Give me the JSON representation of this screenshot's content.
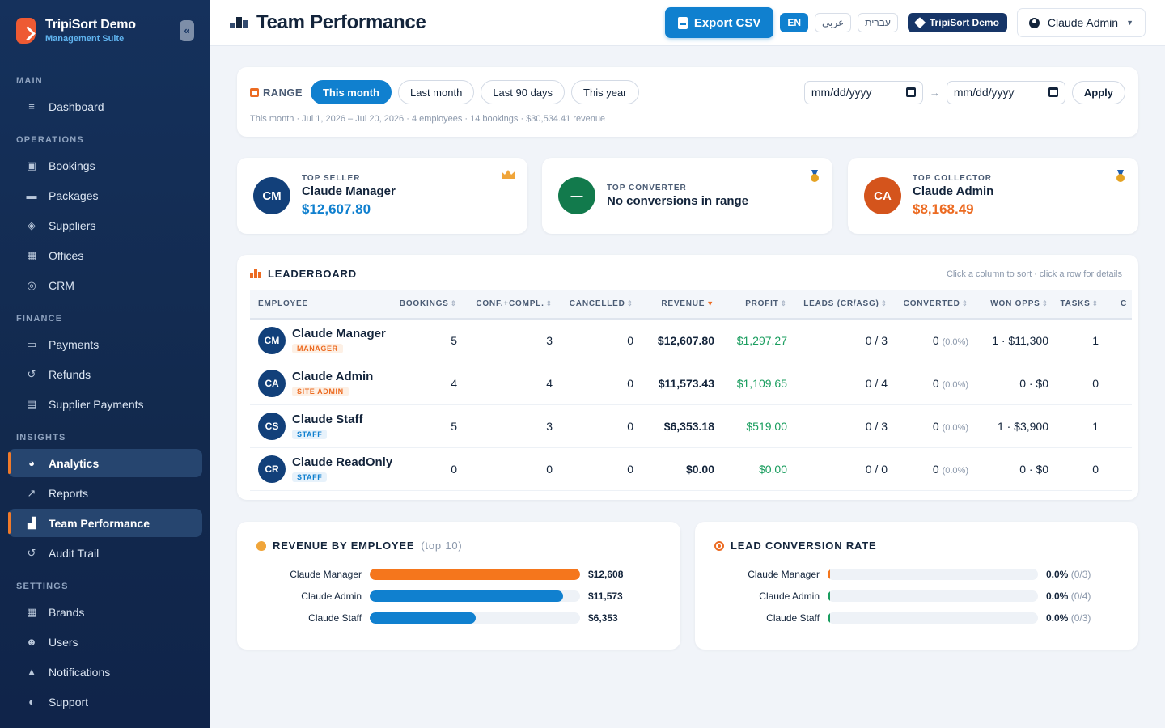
{
  "sidebar": {
    "brand_name": "TripiSort Demo",
    "brand_sub": "Management Suite",
    "collapse_icon": "«",
    "sections": [
      {
        "title": "MAIN",
        "items": [
          {
            "label": "Dashboard",
            "icon": "dashboard-icon",
            "glyph": "≡"
          }
        ]
      },
      {
        "title": "OPERATIONS",
        "items": [
          {
            "label": "Bookings",
            "icon": "calendar-check-icon",
            "glyph": "▣"
          },
          {
            "label": "Packages",
            "icon": "suitcase-icon",
            "glyph": "▬"
          },
          {
            "label": "Suppliers",
            "icon": "handshake-icon",
            "glyph": "◈"
          },
          {
            "label": "Offices",
            "icon": "building-icon",
            "glyph": "▦"
          },
          {
            "label": "CRM",
            "icon": "bullseye-icon",
            "glyph": "◎"
          }
        ]
      },
      {
        "title": "FINANCE",
        "items": [
          {
            "label": "Payments",
            "icon": "credit-card-icon",
            "glyph": "▭"
          },
          {
            "label": "Refunds",
            "icon": "undo-icon",
            "glyph": "↺"
          },
          {
            "label": "Supplier Payments",
            "icon": "money-bill-icon",
            "glyph": "▤"
          }
        ]
      },
      {
        "title": "INSIGHTS",
        "items": [
          {
            "label": "Analytics",
            "icon": "pie-chart-icon",
            "glyph": "◕",
            "active": true
          },
          {
            "label": "Reports",
            "icon": "line-chart-icon",
            "glyph": "↗"
          },
          {
            "label": "Team Performance",
            "icon": "podium-icon",
            "glyph": "▟",
            "active": true
          },
          {
            "label": "Audit Trail",
            "icon": "history-icon",
            "glyph": "↺"
          }
        ]
      },
      {
        "title": "SETTINGS",
        "items": [
          {
            "label": "Brands",
            "icon": "building-icon",
            "glyph": "▦"
          },
          {
            "label": "Users",
            "icon": "users-icon",
            "glyph": "☻"
          },
          {
            "label": "Notifications",
            "icon": "bell-icon",
            "glyph": "▲"
          },
          {
            "label": "Support",
            "icon": "headset-icon",
            "glyph": "◐"
          }
        ]
      }
    ]
  },
  "header": {
    "title": "Team Performance",
    "export_label": "Export CSV",
    "languages": [
      "EN",
      "عربي",
      "עברית"
    ],
    "active_language": "EN",
    "brand_pill": "TripiSort Demo",
    "user_name": "Claude Admin"
  },
  "range": {
    "label": "RANGE",
    "options": [
      "This month",
      "Last month",
      "Last 90 days",
      "This year"
    ],
    "active": "This month",
    "start_placeholder": "mm/dd/yyyy",
    "end_placeholder": "mm/dd/yyyy",
    "arrow": "→",
    "apply_label": "Apply",
    "summary": "This month · Jul 1, 2026 – Jul 20, 2026 · 4 employees · 14 bookings · $30,534.41 revenue"
  },
  "highlights": [
    {
      "label": "TOP SELLER",
      "name": "Claude Manager",
      "value": "$12,607.80",
      "initials": "CM",
      "avatar_color": "#12407a",
      "value_color": "#1080cf",
      "badge": "crown-icon"
    },
    {
      "label": "TOP CONVERTER",
      "name": "No conversions in range",
      "value": "",
      "initials": "—",
      "avatar_color": "#127a4c",
      "value_color": "#199d5e",
      "badge": "medal-icon"
    },
    {
      "label": "TOP COLLECTOR",
      "name": "Claude Admin",
      "value": "$8,168.49",
      "initials": "CA",
      "avatar_color": "#d4541c",
      "value_color": "#ec6b22",
      "badge": "medal-icon"
    }
  ],
  "leaderboard": {
    "title": "LEADERBOARD",
    "hint": "Click a column to sort · click a row for details",
    "columns": [
      "EMPLOYEE",
      "BOOKINGS",
      "CONF.+COMPL.",
      "CANCELLED",
      "REVENUE",
      "PROFIT",
      "LEADS (CR/ASG)",
      "CONVERTED",
      "WON OPPS",
      "TASKS",
      "C"
    ],
    "sorted_column": "REVENUE",
    "rows": [
      {
        "initials": "CM",
        "name": "Claude Manager",
        "role": "MANAGER",
        "role_class": "role-manager",
        "bookings": "5",
        "confirmed": "3",
        "cancelled": "0",
        "revenue": "$12,607.80",
        "profit": "$1,297.27",
        "leads": "0 / 3",
        "converted": "0",
        "converted_pct": "(0.0%)",
        "won_opps": "1 · $11,300",
        "tasks": "1",
        "extra": ""
      },
      {
        "initials": "CA",
        "name": "Claude Admin",
        "role": "SITE ADMIN",
        "role_class": "role-admin",
        "bookings": "4",
        "confirmed": "4",
        "cancelled": "0",
        "revenue": "$11,573.43",
        "profit": "$1,109.65",
        "leads": "0 / 4",
        "converted": "0",
        "converted_pct": "(0.0%)",
        "won_opps": "0 · $0",
        "tasks": "0",
        "extra": ""
      },
      {
        "initials": "CS",
        "name": "Claude Staff",
        "role": "STAFF",
        "role_class": "role-staff",
        "bookings": "5",
        "confirmed": "3",
        "cancelled": "0",
        "revenue": "$6,353.18",
        "profit": "$519.00",
        "leads": "0 / 3",
        "converted": "0",
        "converted_pct": "(0.0%)",
        "won_opps": "1 · $3,900",
        "tasks": "1",
        "extra": ""
      },
      {
        "initials": "CR",
        "name": "Claude ReadOnly",
        "role": "STAFF",
        "role_class": "role-staff",
        "bookings": "0",
        "confirmed": "0",
        "cancelled": "0",
        "revenue": "$0.00",
        "profit": "$0.00",
        "leads": "0 / 0",
        "converted": "0",
        "converted_pct": "(0.0%)",
        "won_opps": "0 · $0",
        "tasks": "0",
        "extra": ""
      }
    ]
  },
  "revenue_chart": {
    "title": "REVENUE BY EMPLOYEE",
    "subtitle": "(top 10)"
  },
  "conversion_chart": {
    "title": "LEAD CONVERSION RATE"
  },
  "chart_data": [
    {
      "type": "bar",
      "orientation": "horizontal",
      "title": "REVENUE BY EMPLOYEE (top 10)",
      "categories": [
        "Claude Manager",
        "Claude Admin",
        "Claude Staff"
      ],
      "values": [
        12608,
        11573,
        6353
      ],
      "value_labels": [
        "$12,608",
        "$11,573",
        "$6,353"
      ],
      "colors": [
        "#f5761c",
        "#1080cf",
        "#1080cf"
      ],
      "xlim": [
        0,
        12608
      ]
    },
    {
      "type": "bar",
      "orientation": "horizontal",
      "title": "LEAD CONVERSION RATE",
      "categories": [
        "Claude Manager",
        "Claude Admin",
        "Claude Staff"
      ],
      "values": [
        0.0,
        0.0,
        0.0
      ],
      "value_labels": [
        "0.0%",
        "0.0%",
        "0.0%"
      ],
      "counts": [
        "(0/3)",
        "(0/4)",
        "(0/3)"
      ],
      "colors": [
        "#f5761c",
        "#199d5e",
        "#199d5e"
      ],
      "xlim": [
        0,
        100
      ]
    }
  ]
}
